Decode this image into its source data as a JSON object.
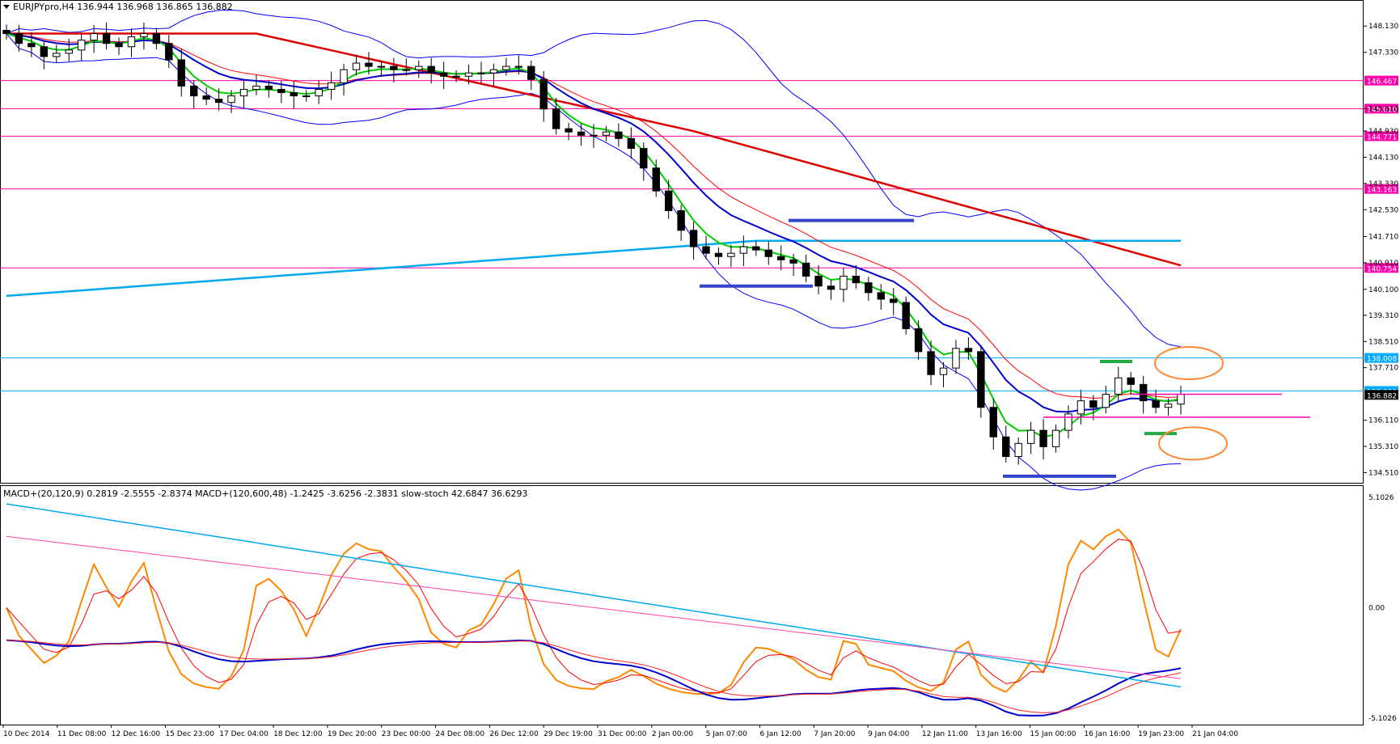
{
  "chart_header": {
    "symbol_line": "EURJPYpro,H4  136.944 136.968 136.865 136.882",
    "indicator_line": "MACD+(20,120,9) 0.2819 -2.5555 -2.8374  MACD+(120,600,48) -1.2425 -3.6256 -2.3831  slow-stoch 42.6847 36.6293"
  },
  "chart_data": [
    {
      "type": "candlestick",
      "title": "EURJPYpro,H4",
      "ylim": [
        134.2,
        148.9
      ],
      "price_ticks": [
        "148.130",
        "147.330",
        "145.610",
        "144.930",
        "144.130",
        "143.330",
        "142.530",
        "141.710",
        "140.910",
        "140.100",
        "139.310",
        "138.510",
        "137.710",
        "136.110",
        "135.310",
        "134.510"
      ],
      "x_ticks": [
        "10 Dec 2014",
        "11 Dec 08:00",
        "12 Dec 16:00",
        "15 Dec 23:00",
        "17 Dec 04:00",
        "18 Dec 12:00",
        "19 Dec 20:00",
        "23 Dec 00:00",
        "24 Dec 08:00",
        "26 Dec 12:00",
        "29 Dec 19:00",
        "31 Dec 00:00",
        "2 Jan 00:00",
        "5 Jan 07:00",
        "6 Jan 12:00",
        "7 Jan 20:00",
        "9 Jan 04:00",
        "12 Jan 11:00",
        "13 Jan 16:00",
        "15 Jan 00:00",
        "16 Jan 16:00",
        "19 Jan 23:00",
        "21 Jan 04:00"
      ],
      "level_lines": [
        {
          "label": "146.467",
          "color": "#ff00aa"
        },
        {
          "label": "145.610",
          "color": "#ff00aa"
        },
        {
          "label": "144.771",
          "color": "#ff00aa"
        },
        {
          "label": "143.163",
          "color": "#ff00aa"
        },
        {
          "label": "140.754",
          "color": "#ff00aa"
        },
        {
          "label": "138.008",
          "color": "#00aaff"
        },
        {
          "label": "137.002",
          "color": "#00aaff"
        }
      ],
      "current_price_label": "136.882",
      "series": [
        {
          "name": "EURJPY close",
          "values": [
            147.9,
            147.6,
            147.5,
            147.2,
            147.3,
            147.4,
            147.7,
            147.9,
            147.6,
            147.5,
            147.8,
            147.9,
            147.6,
            147.1,
            146.3,
            146.0,
            145.9,
            145.8,
            146.0,
            146.2,
            146.3,
            146.2,
            146.1,
            146.0,
            146.0,
            146.2,
            146.4,
            146.8,
            147.0,
            146.9,
            146.9,
            146.8,
            146.8,
            146.9,
            146.7,
            146.6,
            146.6,
            146.7,
            146.7,
            146.8,
            146.9,
            146.9,
            146.5,
            145.6,
            145.0,
            144.9,
            144.8,
            144.8,
            144.9,
            144.7,
            144.4,
            143.8,
            143.1,
            142.5,
            141.9,
            141.4,
            141.2,
            141.1,
            141.2,
            141.4,
            141.3,
            141.1,
            141.0,
            140.9,
            140.5,
            140.2,
            140.1,
            140.5,
            140.3,
            140.0,
            139.8,
            139.7,
            138.9,
            138.2,
            137.5,
            137.7,
            138.3,
            138.2,
            136.5,
            135.6,
            135.0,
            135.4,
            135.8,
            135.3,
            135.8,
            136.3,
            136.7,
            136.5,
            136.9,
            137.4,
            137.2,
            136.7,
            136.5,
            136.6,
            136.9
          ]
        },
        {
          "name": "EMA green",
          "color": "#00cc00"
        },
        {
          "name": "EMA blue",
          "color": "#0000cc"
        },
        {
          "name": "EMA red thin",
          "color": "#ff0000"
        },
        {
          "name": "SMA red thick",
          "color": "#dd0000"
        },
        {
          "name": "SMA cyan",
          "color": "#00aaee"
        },
        {
          "name": "Bollinger bands",
          "color": "#0000ff"
        }
      ]
    },
    {
      "type": "line",
      "title": "MACD+ / slow-stoch",
      "ylim": [
        -5.1026,
        5.1026
      ],
      "y_ticks": [
        "5.1026",
        "0.00",
        "-5.1026"
      ],
      "series": [
        {
          "name": "slow-stoch",
          "color": "#ff8800"
        },
        {
          "name": "slow-stoch signal",
          "color": "#ff0000"
        },
        {
          "name": "MACD+(20,120,9)",
          "color": "#0000cc"
        },
        {
          "name": "MACD+(120,600,48) main",
          "color": "#00aaee"
        },
        {
          "name": "MACD+(120,600,48) signal",
          "color": "#ff44aa"
        }
      ]
    }
  ]
}
